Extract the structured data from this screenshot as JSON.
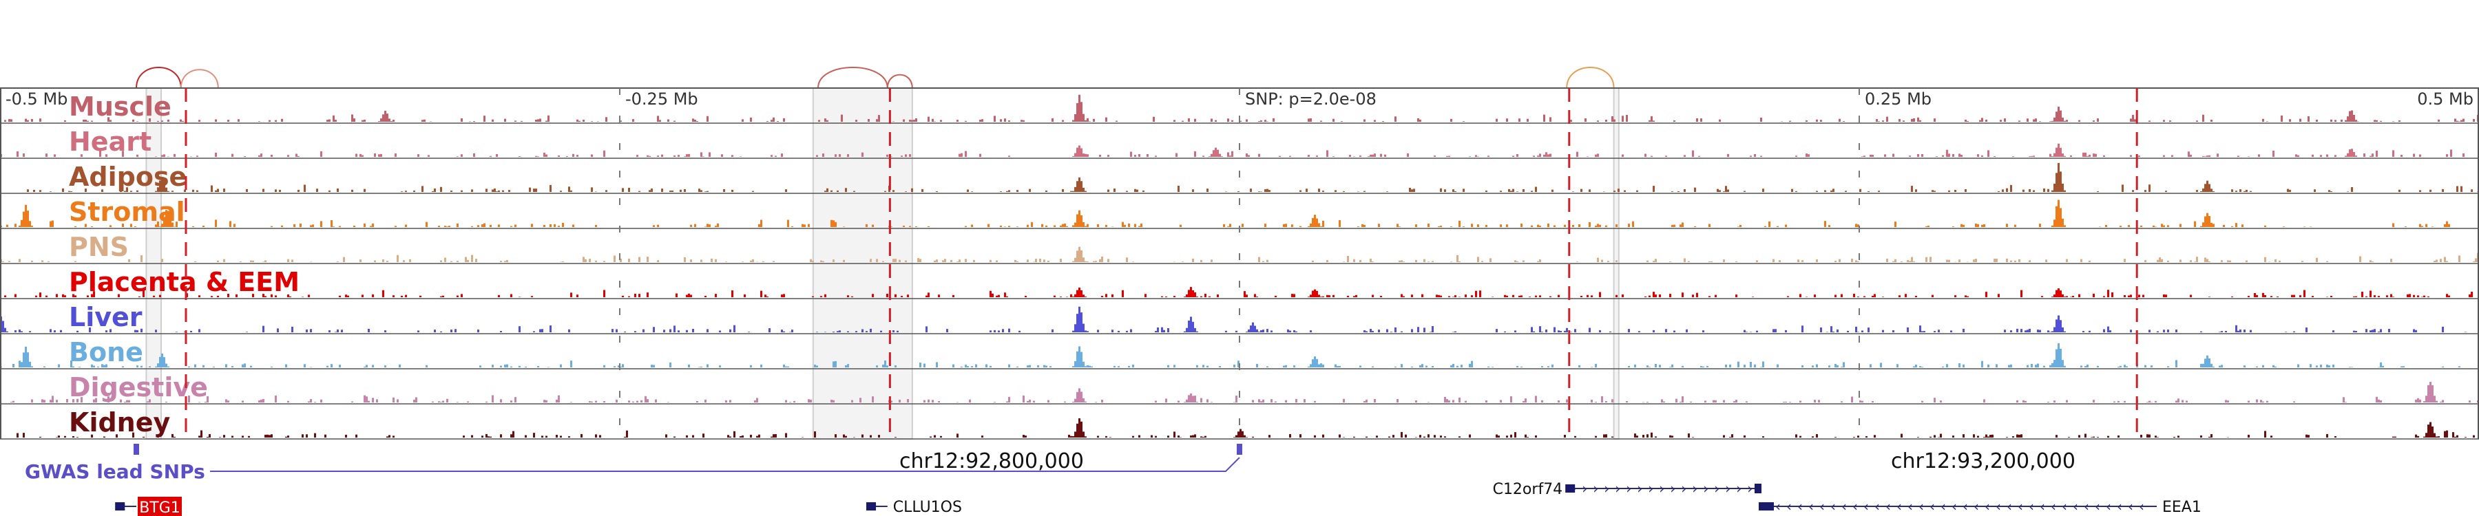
{
  "chart_data": {
    "type": "area",
    "title": "",
    "region": {
      "start": 92400000,
      "end": 93400000
    },
    "scale_labels": [
      {
        "text": "-0.5 Mb",
        "pos": 92400000
      },
      {
        "text": "-0.25 Mb",
        "pos": 92650000
      },
      {
        "text": "SNP: p=2.0e-08",
        "pos": 92900000
      },
      {
        "text": "0.25 Mb",
        "pos": 93150000
      },
      {
        "text": "0.5 Mb",
        "pos": 93400000
      }
    ],
    "coordinate_labels": [
      {
        "text": "chr12:92,800,000",
        "pos": 92800000
      },
      {
        "text": "chr12:93,200,000",
        "pos": 93200000
      }
    ],
    "tracks": [
      {
        "name": "Muscle",
        "color": "#c0606a",
        "peaks": [
          [
            92555000,
            0.4
          ],
          [
            92835000,
            0.95
          ],
          [
            93230000,
            0.55
          ],
          [
            93348000,
            0.45
          ]
        ]
      },
      {
        "name": "Heart",
        "color": "#d06e80",
        "peaks": [
          [
            92835000,
            0.45
          ],
          [
            92890000,
            0.35
          ],
          [
            93230000,
            0.45
          ],
          [
            93348000,
            0.3
          ]
        ]
      },
      {
        "name": "Adipose",
        "color": "#a2542e",
        "peaks": [
          [
            92465000,
            0.55
          ],
          [
            92835000,
            0.55
          ],
          [
            93230000,
            1.0
          ],
          [
            93290000,
            0.4
          ]
        ]
      },
      {
        "name": "Stromal",
        "color": "#ee7b1a",
        "peaks": [
          [
            92410000,
            0.8
          ],
          [
            92467000,
            0.65
          ],
          [
            92835000,
            0.6
          ],
          [
            92930000,
            0.45
          ],
          [
            93230000,
            1.0
          ],
          [
            93290000,
            0.55
          ]
        ]
      },
      {
        "name": "PNS",
        "color": "#d9ad88",
        "peaks": [
          [
            92835000,
            0.55
          ],
          [
            93400000,
            0.45
          ]
        ]
      },
      {
        "name": "Placenta & EEM",
        "color": "#e00000",
        "peaks": [
          [
            92835000,
            0.35
          ],
          [
            92880000,
            0.35
          ],
          [
            92930000,
            0.3
          ],
          [
            93230000,
            0.35
          ]
        ]
      },
      {
        "name": "Liver",
        "color": "#5050d8",
        "peaks": [
          [
            92400000,
            0.55
          ],
          [
            92835000,
            1.0
          ],
          [
            92880000,
            0.55
          ],
          [
            92905000,
            0.35
          ],
          [
            93230000,
            0.6
          ]
        ]
      },
      {
        "name": "Bone",
        "color": "#6aaee0",
        "peaks": [
          [
            92410000,
            0.7
          ],
          [
            92465000,
            0.5
          ],
          [
            92835000,
            0.75
          ],
          [
            92930000,
            0.4
          ],
          [
            93230000,
            0.9
          ],
          [
            93290000,
            0.45
          ]
        ]
      },
      {
        "name": "Digestive",
        "color": "#c783aa",
        "peaks": [
          [
            92835000,
            0.5
          ],
          [
            92880000,
            0.35
          ],
          [
            93380000,
            0.8
          ]
        ]
      },
      {
        "name": "Kidney",
        "color": "#6a0f10",
        "peaks": [
          [
            92835000,
            0.75
          ],
          [
            92900000,
            0.3
          ],
          [
            93380000,
            0.6
          ]
        ]
      }
    ],
    "gwas": {
      "label": "GWAS lead SNPs",
      "color": "#5a4fc8",
      "snps": [
        92455000,
        92900000
      ]
    },
    "genes": [
      {
        "name": "BTG1",
        "start": 92447000,
        "end": 92455000,
        "strand": "-",
        "highlight": true
      },
      {
        "name": "CLLU1OS",
        "start": 92750000,
        "end": 92758000,
        "strand": "-",
        "highlight": false
      },
      {
        "name": "C12orf74",
        "start": 93032000,
        "end": 93110000,
        "strand": "+",
        "highlight": false
      },
      {
        "name": "EEA1",
        "start": 93110000,
        "end": 93270000,
        "strand": "-",
        "highlight": false
      }
    ],
    "loops": [
      {
        "start": 92455000,
        "end": 92473000,
        "color": "#c02828"
      },
      {
        "start": 92473000,
        "end": 92488000,
        "color": "#e09080"
      },
      {
        "start": 92730000,
        "end": 92758000,
        "color": "#c8605a"
      },
      {
        "start": 92758000,
        "end": 92768000,
        "color": "#c8605a"
      },
      {
        "start": 93032000,
        "end": 93051000,
        "color": "#e8a050"
      }
    ],
    "highlight_lines": [
      92475000,
      92759000,
      93033000,
      93262000
    ],
    "shaded_regions": [
      {
        "start": 92459000,
        "end": 92465000
      },
      {
        "start": 92728000,
        "end": 92768000
      },
      {
        "start": 93051000,
        "end": 93053000
      }
    ]
  }
}
